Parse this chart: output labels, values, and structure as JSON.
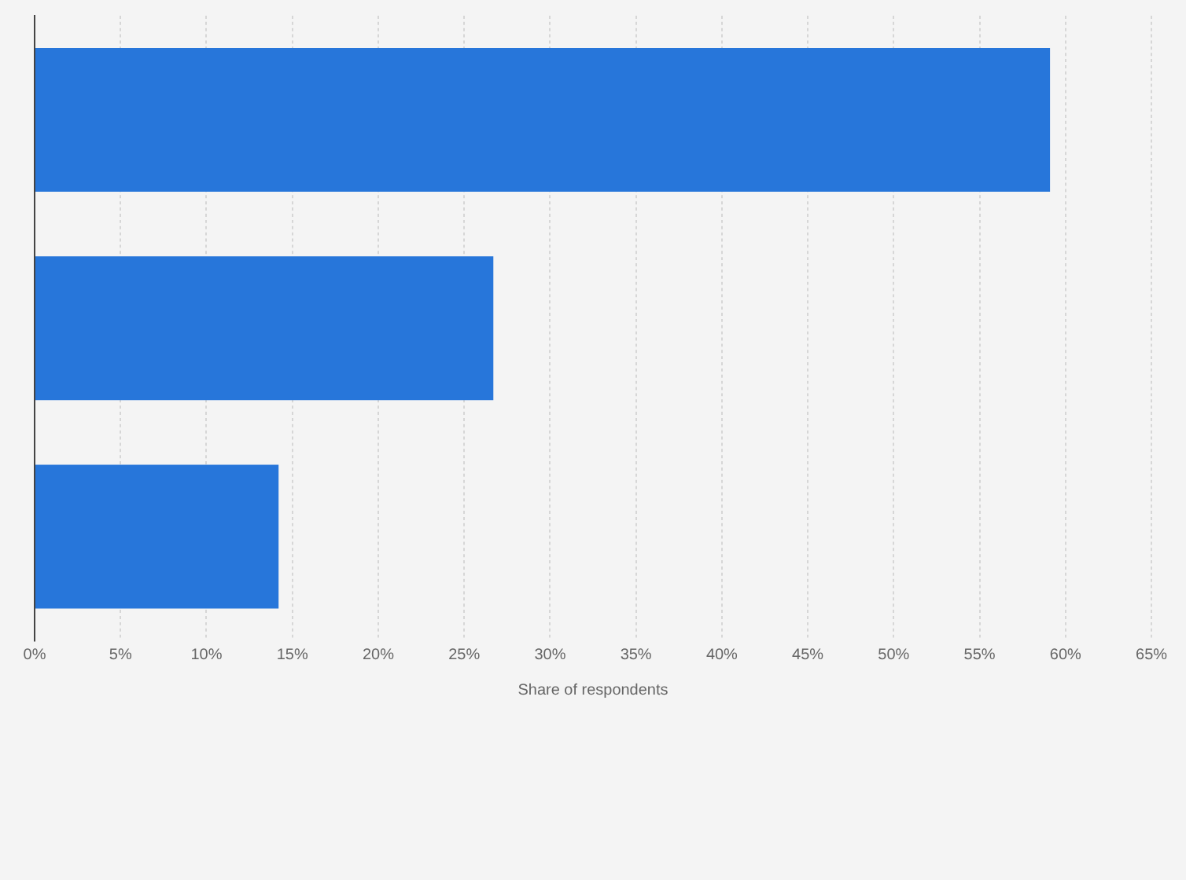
{
  "chart_data": {
    "type": "bar",
    "orientation": "horizontal",
    "xlabel": "Share of respondents",
    "categories": [
      null,
      null,
      null
    ],
    "values": [
      59.1,
      26.7,
      14.2
    ],
    "color": "#2776da",
    "xlim": [
      0,
      65
    ],
    "xticks": [
      {
        "value": 0,
        "label": "0%"
      },
      {
        "value": 5,
        "label": "5%"
      },
      {
        "value": 10,
        "label": "10%"
      },
      {
        "value": 15,
        "label": "15%"
      },
      {
        "value": 20,
        "label": "20%"
      },
      {
        "value": 25,
        "label": "25%"
      },
      {
        "value": 30,
        "label": "30%"
      },
      {
        "value": 35,
        "label": "35%"
      },
      {
        "value": 40,
        "label": "40%"
      },
      {
        "value": 45,
        "label": "45%"
      },
      {
        "value": 50,
        "label": "50%"
      },
      {
        "value": 55,
        "label": "55%"
      },
      {
        "value": 60,
        "label": "60%"
      },
      {
        "value": 65,
        "label": "65%"
      }
    ],
    "grid": "x"
  }
}
